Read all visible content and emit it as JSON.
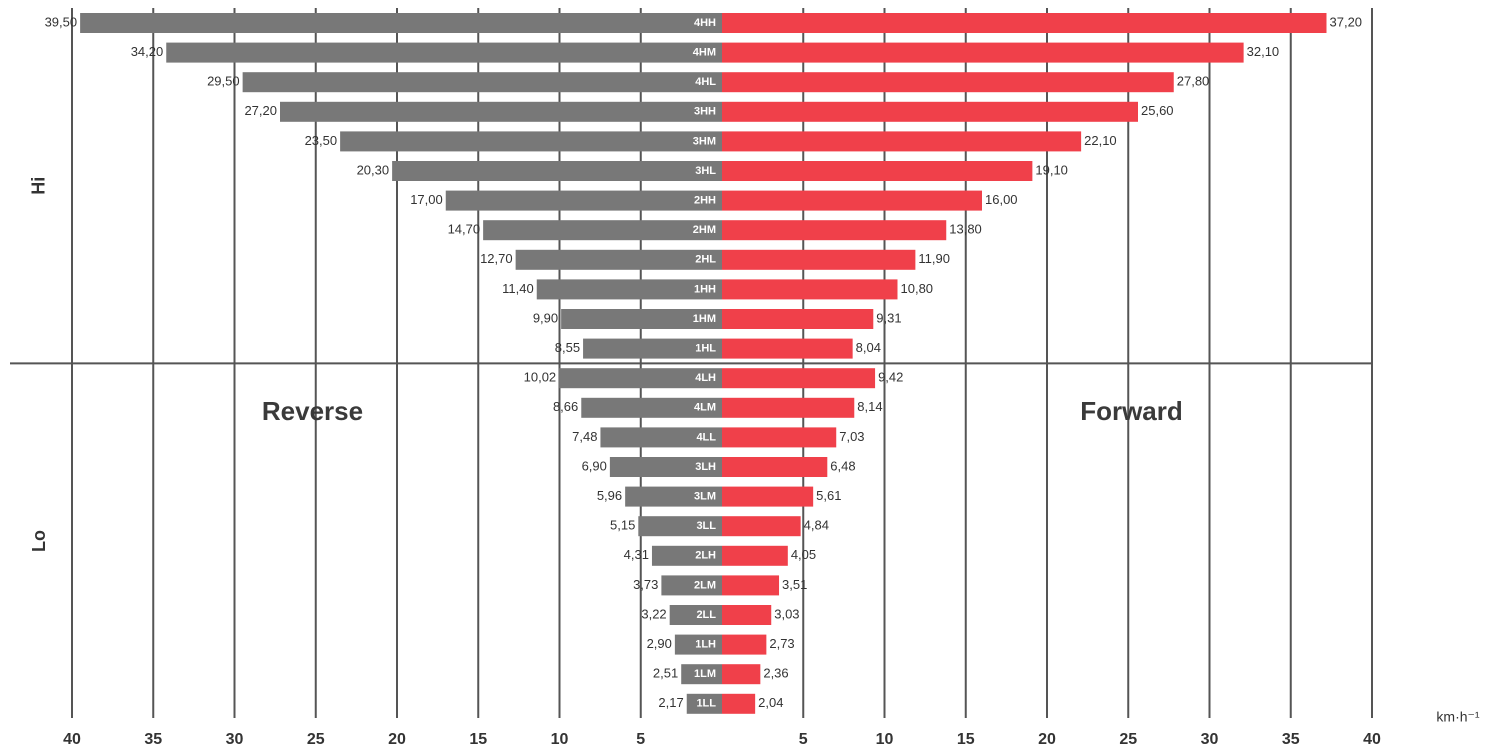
{
  "chart_data": {
    "type": "diverging-bar",
    "categories": [
      "4HH",
      "4HM",
      "4HL",
      "3HH",
      "3HM",
      "3HL",
      "2HH",
      "2HM",
      "2HL",
      "1HH",
      "1HM",
      "1HL",
      "4LH",
      "4LM",
      "4LL",
      "3LH",
      "3LM",
      "3LL",
      "2LH",
      "2LM",
      "2LL",
      "1LH",
      "1LM",
      "1LL"
    ],
    "group_labels": [
      "Hi",
      "Lo"
    ],
    "series": [
      {
        "name": "Reverse",
        "color": "#787878",
        "side": "left",
        "values": [
          39.5,
          34.2,
          29.5,
          27.2,
          23.5,
          20.3,
          17.0,
          14.7,
          12.7,
          11.4,
          9.9,
          8.55,
          10.02,
          8.66,
          7.48,
          6.9,
          5.96,
          5.15,
          4.31,
          3.73,
          3.22,
          2.9,
          2.51,
          2.17
        ],
        "value_labels": [
          "39,50",
          "34,20",
          "29,50",
          "27,20",
          "23,50",
          "20,30",
          "17,00",
          "14,70",
          "12,70",
          "11,40",
          "9,90",
          "8,55",
          "10,02",
          "8,66",
          "7,48",
          "6,90",
          "5,96",
          "5,15",
          "4,31",
          "3,73",
          "3,22",
          "2,90",
          "2,51",
          "2,17"
        ]
      },
      {
        "name": "Forward",
        "color": "#f0404a",
        "side": "right",
        "values": [
          37.2,
          32.1,
          27.8,
          25.6,
          22.1,
          19.1,
          16.0,
          13.8,
          11.9,
          10.8,
          9.31,
          8.04,
          9.42,
          8.14,
          7.03,
          6.48,
          5.61,
          4.84,
          4.05,
          3.51,
          3.03,
          2.73,
          2.36,
          2.04
        ],
        "value_labels": [
          "37,20",
          "32,10",
          "27,80",
          "25,60",
          "22,10",
          "19,10",
          "16,00",
          "13,80",
          "11,90",
          "10,80",
          "9,31",
          "8,04",
          "9,42",
          "8,14",
          "7,03",
          "6,48",
          "5,61",
          "4,84",
          "4,05",
          "3,51",
          "3,03",
          "2,73",
          "2,36",
          "2,04"
        ]
      }
    ],
    "xlim": [
      0,
      40
    ],
    "xticks": [
      5,
      10,
      15,
      20,
      25,
      30,
      35,
      40
    ],
    "xlabel": "km·h⁻¹",
    "grid": true
  }
}
